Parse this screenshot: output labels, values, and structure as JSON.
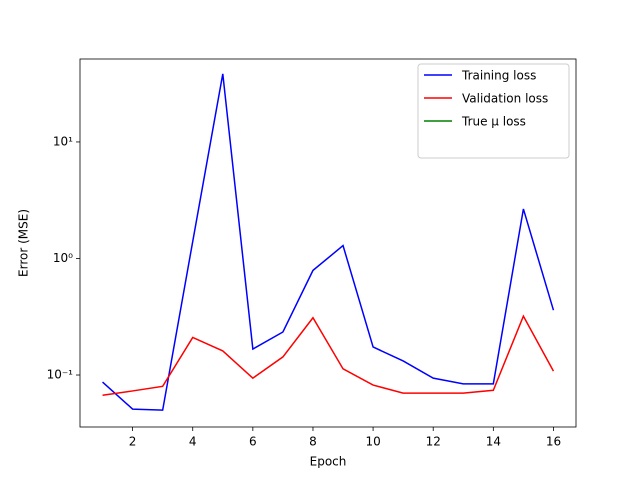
{
  "chart_data": {
    "type": "line",
    "x_label": "Epoch",
    "y_label": "Error (MSE)",
    "x": [
      1,
      2,
      3,
      4,
      5,
      6,
      7,
      8,
      9,
      10,
      11,
      12,
      13,
      14,
      15,
      16
    ],
    "series": [
      {
        "name": "Training loss",
        "color": "#0000ff",
        "values": [
          0.087,
          0.051,
          0.05,
          1.4,
          38.4,
          0.167,
          0.234,
          0.79,
          1.29,
          0.174,
          0.132,
          0.094,
          0.084,
          0.084,
          2.66,
          0.36
        ]
      },
      {
        "name": "Validation loss",
        "color": "#ff0000",
        "values": [
          0.067,
          0.073,
          0.08,
          0.21,
          0.161,
          0.094,
          0.143,
          0.31,
          0.113,
          0.082,
          0.07,
          0.07,
          0.07,
          0.074,
          0.32,
          0.108
        ]
      },
      {
        "name": "True μ loss",
        "color": "#008000",
        "values": [
          null,
          null,
          null,
          null,
          null,
          null,
          null,
          null,
          null,
          null,
          null,
          null,
          null,
          null,
          null,
          null
        ]
      }
    ],
    "xlim": [
      0.25,
      16.75
    ],
    "xticks": [
      2,
      4,
      6,
      8,
      10,
      12,
      14,
      16
    ],
    "ylim": [
      0.0358,
      51.5
    ],
    "ylog": true,
    "yticks": [
      {
        "value": 0.1,
        "label": "10⁻¹"
      },
      {
        "value": 1,
        "label": "10⁰"
      },
      {
        "value": 10,
        "label": "10¹"
      }
    ],
    "legend": "upper right"
  }
}
